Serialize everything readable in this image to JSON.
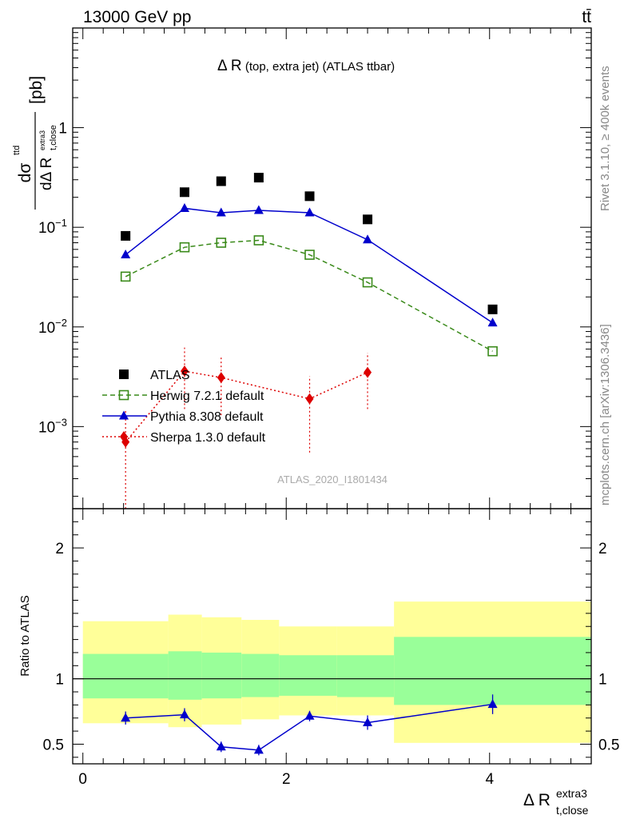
{
  "header": {
    "left": "13000 GeV pp",
    "right": "tt̄"
  },
  "side_labels": {
    "rivet": "Rivet 3.1.10, ≥ 400k events",
    "mcplots": "mcplots.cern.ch [arXiv:1306.3436]"
  },
  "chart_data": [
    {
      "type": "scatter",
      "panel": "main",
      "title_main": "Δ R",
      "title_rest": " (top, extra jet) (ATLAS ttbar)",
      "watermark": "ATLAS_2020_I1801434",
      "ylabel": "dσᵗᵗᵈ / dΔ R_t,close^extra3 [pb]",
      "ylabel_parts": {
        "num": "dσ",
        "num_sup": "ttd",
        "den": "dΔ R",
        "den_sub": "t,close",
        "den_sup": "extra3",
        "unit": "[pb]"
      },
      "yscale": "log",
      "ylim": [
        0.00015,
        10
      ],
      "xlim": [
        -0.1,
        5.0
      ],
      "yticks": [
        {
          "v": 1,
          "base": "1",
          "exp": ""
        },
        {
          "v": 0.1,
          "base": "10",
          "exp": "−1"
        },
        {
          "v": 0.01,
          "base": "10",
          "exp": "−2"
        },
        {
          "v": 0.001,
          "base": "10",
          "exp": "−3"
        }
      ],
      "legend_position": "bottom-left",
      "series": [
        {
          "name": "ATLAS",
          "marker": "square-filled",
          "color": "#000000",
          "line": "none",
          "x": [
            0.42,
            1.0,
            1.36,
            1.73,
            2.23,
            2.8,
            4.03
          ],
          "y": [
            0.082,
            0.225,
            0.29,
            0.315,
            0.205,
            0.12,
            0.015
          ]
        },
        {
          "name": "Herwig 7.2.1 default",
          "marker": "square-open",
          "color": "#3a8a1a",
          "line": "dashed",
          "x": [
            0.42,
            1.0,
            1.36,
            1.73,
            2.23,
            2.8,
            4.03
          ],
          "y": [
            0.032,
            0.063,
            0.07,
            0.074,
            0.053,
            0.028,
            0.0057
          ]
        },
        {
          "name": "Pythia 8.308 default",
          "marker": "triangle",
          "color": "#0000cc",
          "line": "solid",
          "x": [
            0.42,
            1.0,
            1.36,
            1.73,
            2.23,
            2.8,
            4.03
          ],
          "y": [
            0.053,
            0.155,
            0.14,
            0.148,
            0.14,
            0.075,
            0.011
          ]
        },
        {
          "name": "Sherpa 1.3.0 default",
          "marker": "diamond",
          "color": "#dd0000",
          "line": "dotted",
          "x": [
            0.42,
            1.0,
            1.36,
            2.23,
            2.8
          ],
          "y": [
            0.0007,
            0.0036,
            0.0031,
            0.0019,
            0.0035
          ],
          "ylo": [
            8e-05,
            0.0015,
            0.0013,
            0.00055,
            0.0015
          ],
          "yhi": [
            0.0015,
            0.0062,
            0.0051,
            0.0032,
            0.0055
          ]
        }
      ]
    },
    {
      "type": "line",
      "panel": "ratio",
      "ylabel": "Ratio to ATLAS",
      "xlabel": "Δ R",
      "xlabel_sub": "t,close",
      "xlabel_sup": "extra3",
      "xlim": [
        -0.1,
        5.0
      ],
      "ylim": [
        0.35,
        2.3
      ],
      "xticks": [
        0,
        2,
        4
      ],
      "yticks": [
        0.5,
        1,
        2
      ],
      "bands": [
        {
          "x0": 0.0,
          "x1": 0.84,
          "in_lo": 0.85,
          "in_hi": 1.19,
          "out_lo": 0.66,
          "out_hi": 1.44
        },
        {
          "x0": 0.84,
          "x1": 1.17,
          "in_lo": 0.84,
          "in_hi": 1.21,
          "out_lo": 0.63,
          "out_hi": 1.49
        },
        {
          "x0": 1.17,
          "x1": 1.56,
          "in_lo": 0.85,
          "in_hi": 1.2,
          "out_lo": 0.65,
          "out_hi": 1.47
        },
        {
          "x0": 1.56,
          "x1": 1.93,
          "in_lo": 0.86,
          "in_hi": 1.19,
          "out_lo": 0.69,
          "out_hi": 1.45
        },
        {
          "x0": 1.93,
          "x1": 2.5,
          "in_lo": 0.87,
          "in_hi": 1.18,
          "out_lo": 0.72,
          "out_hi": 1.4
        },
        {
          "x0": 2.5,
          "x1": 3.06,
          "in_lo": 0.86,
          "in_hi": 1.18,
          "out_lo": 0.72,
          "out_hi": 1.4
        },
        {
          "x0": 3.06,
          "x1": 5.0,
          "in_lo": 0.8,
          "in_hi": 1.32,
          "out_lo": 0.51,
          "out_hi": 1.59
        }
      ],
      "band_colors": {
        "inner": "#99ff99",
        "outer": "#ffff99"
      },
      "series": [
        {
          "name": "Pythia 8.308 default",
          "color": "#0000cc",
          "marker": "triangle",
          "x": [
            0.42,
            1.0,
            1.36,
            1.73,
            2.23,
            2.8,
            4.03
          ],
          "y": [
            0.7,
            0.725,
            0.48,
            0.455,
            0.715,
            0.665,
            0.805
          ],
          "err": [
            0.05,
            0.05,
            0.04,
            0.04,
            0.04,
            0.055,
            0.075
          ]
        }
      ]
    }
  ]
}
